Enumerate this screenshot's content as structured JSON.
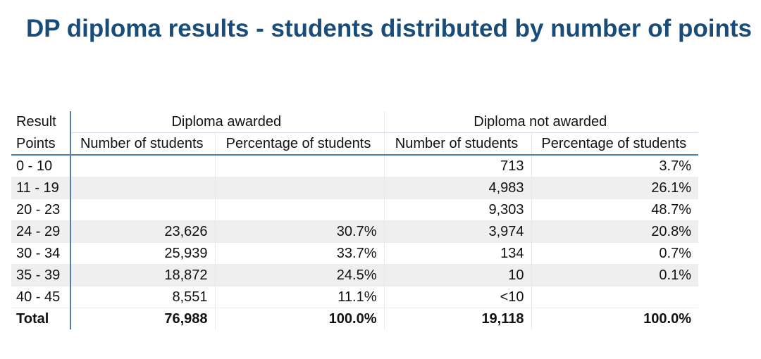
{
  "title": "DP diploma results - students distributed by number of points",
  "table": {
    "corner_top": "Result",
    "corner_bottom": "Points",
    "groups": [
      "Diploma awarded",
      "Diploma not awarded"
    ],
    "columns": [
      "Number of students",
      "Percentage of students",
      "Number of students",
      "Percentage of students"
    ],
    "rows": [
      {
        "points": "0 - 10",
        "cells": [
          "",
          "",
          "713",
          "3.7%"
        ]
      },
      {
        "points": "11 - 19",
        "cells": [
          "",
          "",
          "4,983",
          "26.1%"
        ]
      },
      {
        "points": "20 - 23",
        "cells": [
          "",
          "",
          "9,303",
          "48.7%"
        ]
      },
      {
        "points": "24 - 29",
        "cells": [
          "23,626",
          "30.7%",
          "3,974",
          "20.8%"
        ]
      },
      {
        "points": "30 - 34",
        "cells": [
          "25,939",
          "33.7%",
          "134",
          "0.7%"
        ]
      },
      {
        "points": "35 - 39",
        "cells": [
          "18,872",
          "24.5%",
          "10",
          "0.1%"
        ]
      },
      {
        "points": "40 - 45",
        "cells": [
          "8,551",
          "11.1%",
          "<10",
          ""
        ]
      }
    ],
    "total": {
      "label": "Total",
      "cells": [
        "76,988",
        "100.0%",
        "19,118",
        "100.0%"
      ]
    }
  },
  "colors": {
    "title": "#1a4c7a",
    "rule": "#4f7fb0",
    "row_shade": "#efefef"
  }
}
